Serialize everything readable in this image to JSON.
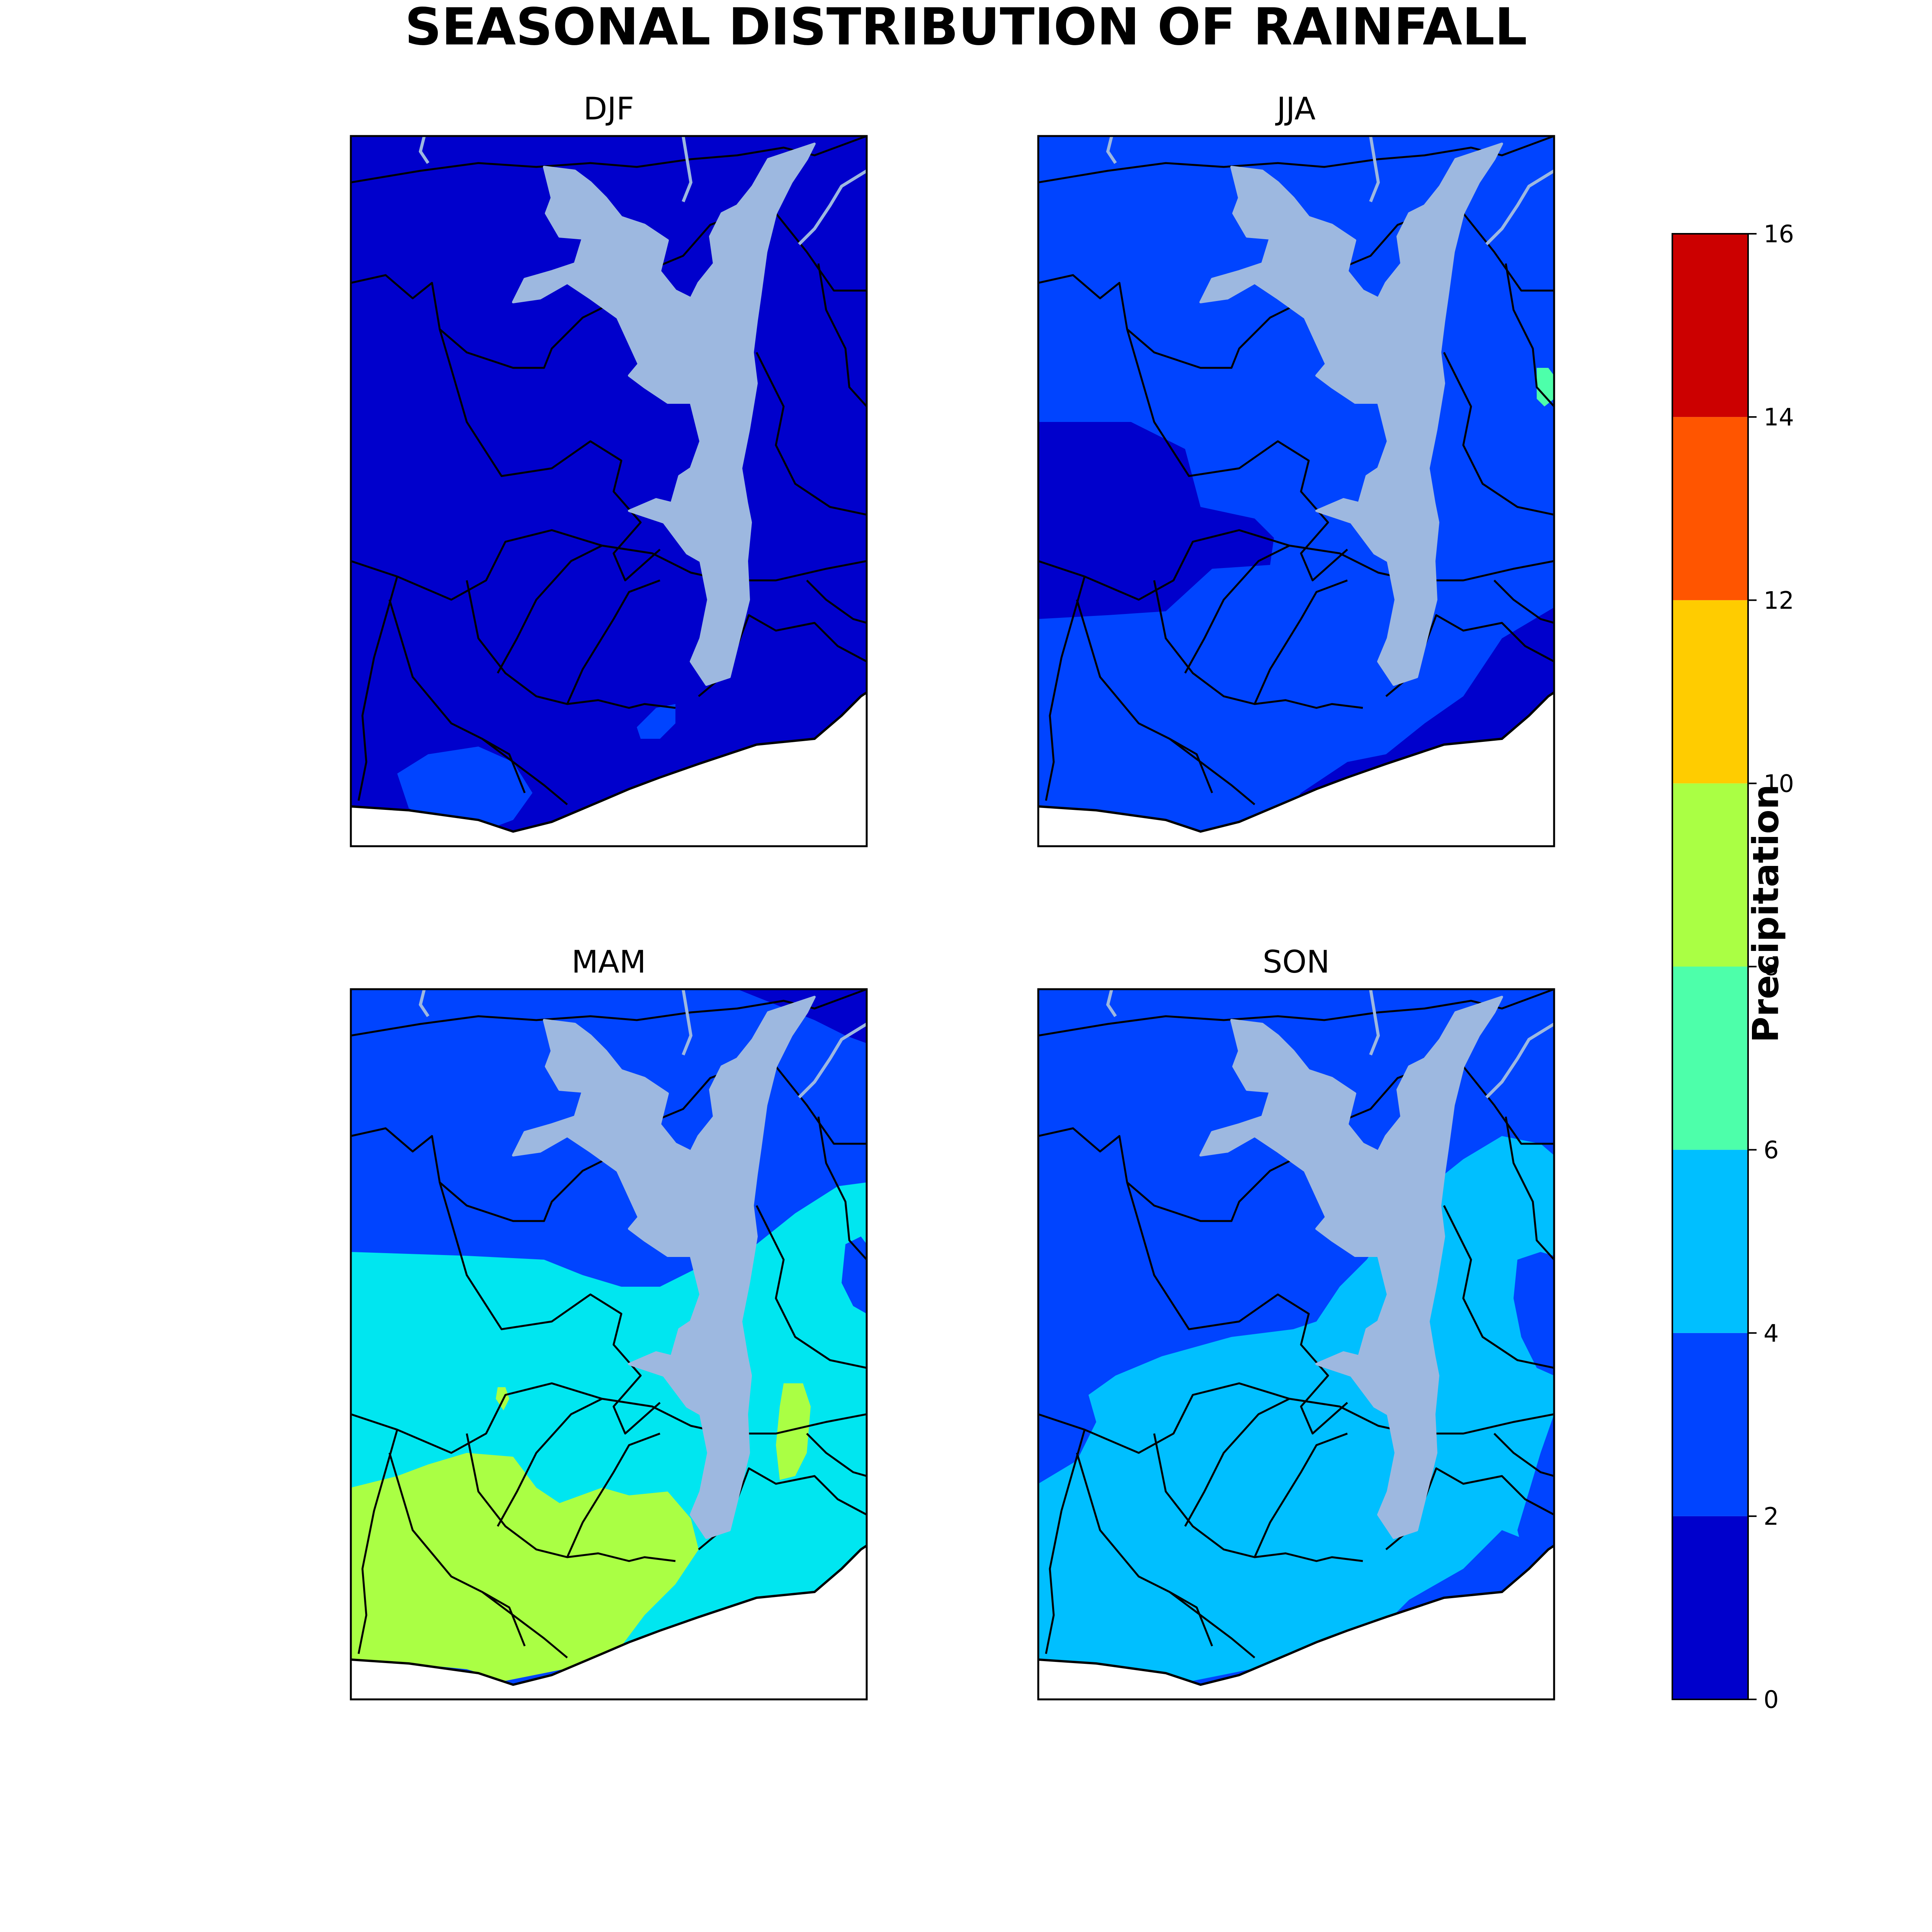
{
  "title": "SEASONAL DISTRIBUTION OF RAINFALL",
  "chart_data": {
    "type": "filled-contour map",
    "title": "SEASONAL DISTRIBUTION OF RAINFALL",
    "panels": [
      {
        "name": "DJF",
        "dominant_range": [
          0,
          2
        ],
        "secondary_ranges": [
          [
            2,
            4
          ]
        ]
      },
      {
        "name": "JJA",
        "dominant_range": [
          2,
          4
        ],
        "secondary_ranges": [
          [
            0,
            2
          ],
          [
            6,
            8
          ]
        ]
      },
      {
        "name": "MAM",
        "dominant_range": [
          2,
          4
        ],
        "secondary_ranges": [
          [
            4,
            6
          ],
          [
            8,
            10
          ],
          [
            0,
            2
          ]
        ]
      },
      {
        "name": "SON",
        "dominant_range": [
          2,
          4
        ],
        "secondary_ranges": [
          [
            4,
            6
          ]
        ]
      }
    ],
    "colorbar": {
      "label": "Precipitation",
      "levels": [
        0,
        2,
        4,
        6,
        8,
        10,
        12,
        14,
        16
      ],
      "ticks": [
        "0",
        "2",
        "4",
        "6",
        "8",
        "10",
        "12",
        "14",
        "16"
      ],
      "colors": [
        "#0000cc",
        "#0044ff",
        "#00bfff",
        "#4dffaa",
        "#aaff44",
        "#ffcc00",
        "#ff5500",
        "#cc0000"
      ]
    }
  },
  "colors": {
    "lake": "#9db8e0",
    "boundary": "#000000",
    "background": "#ffffff"
  }
}
